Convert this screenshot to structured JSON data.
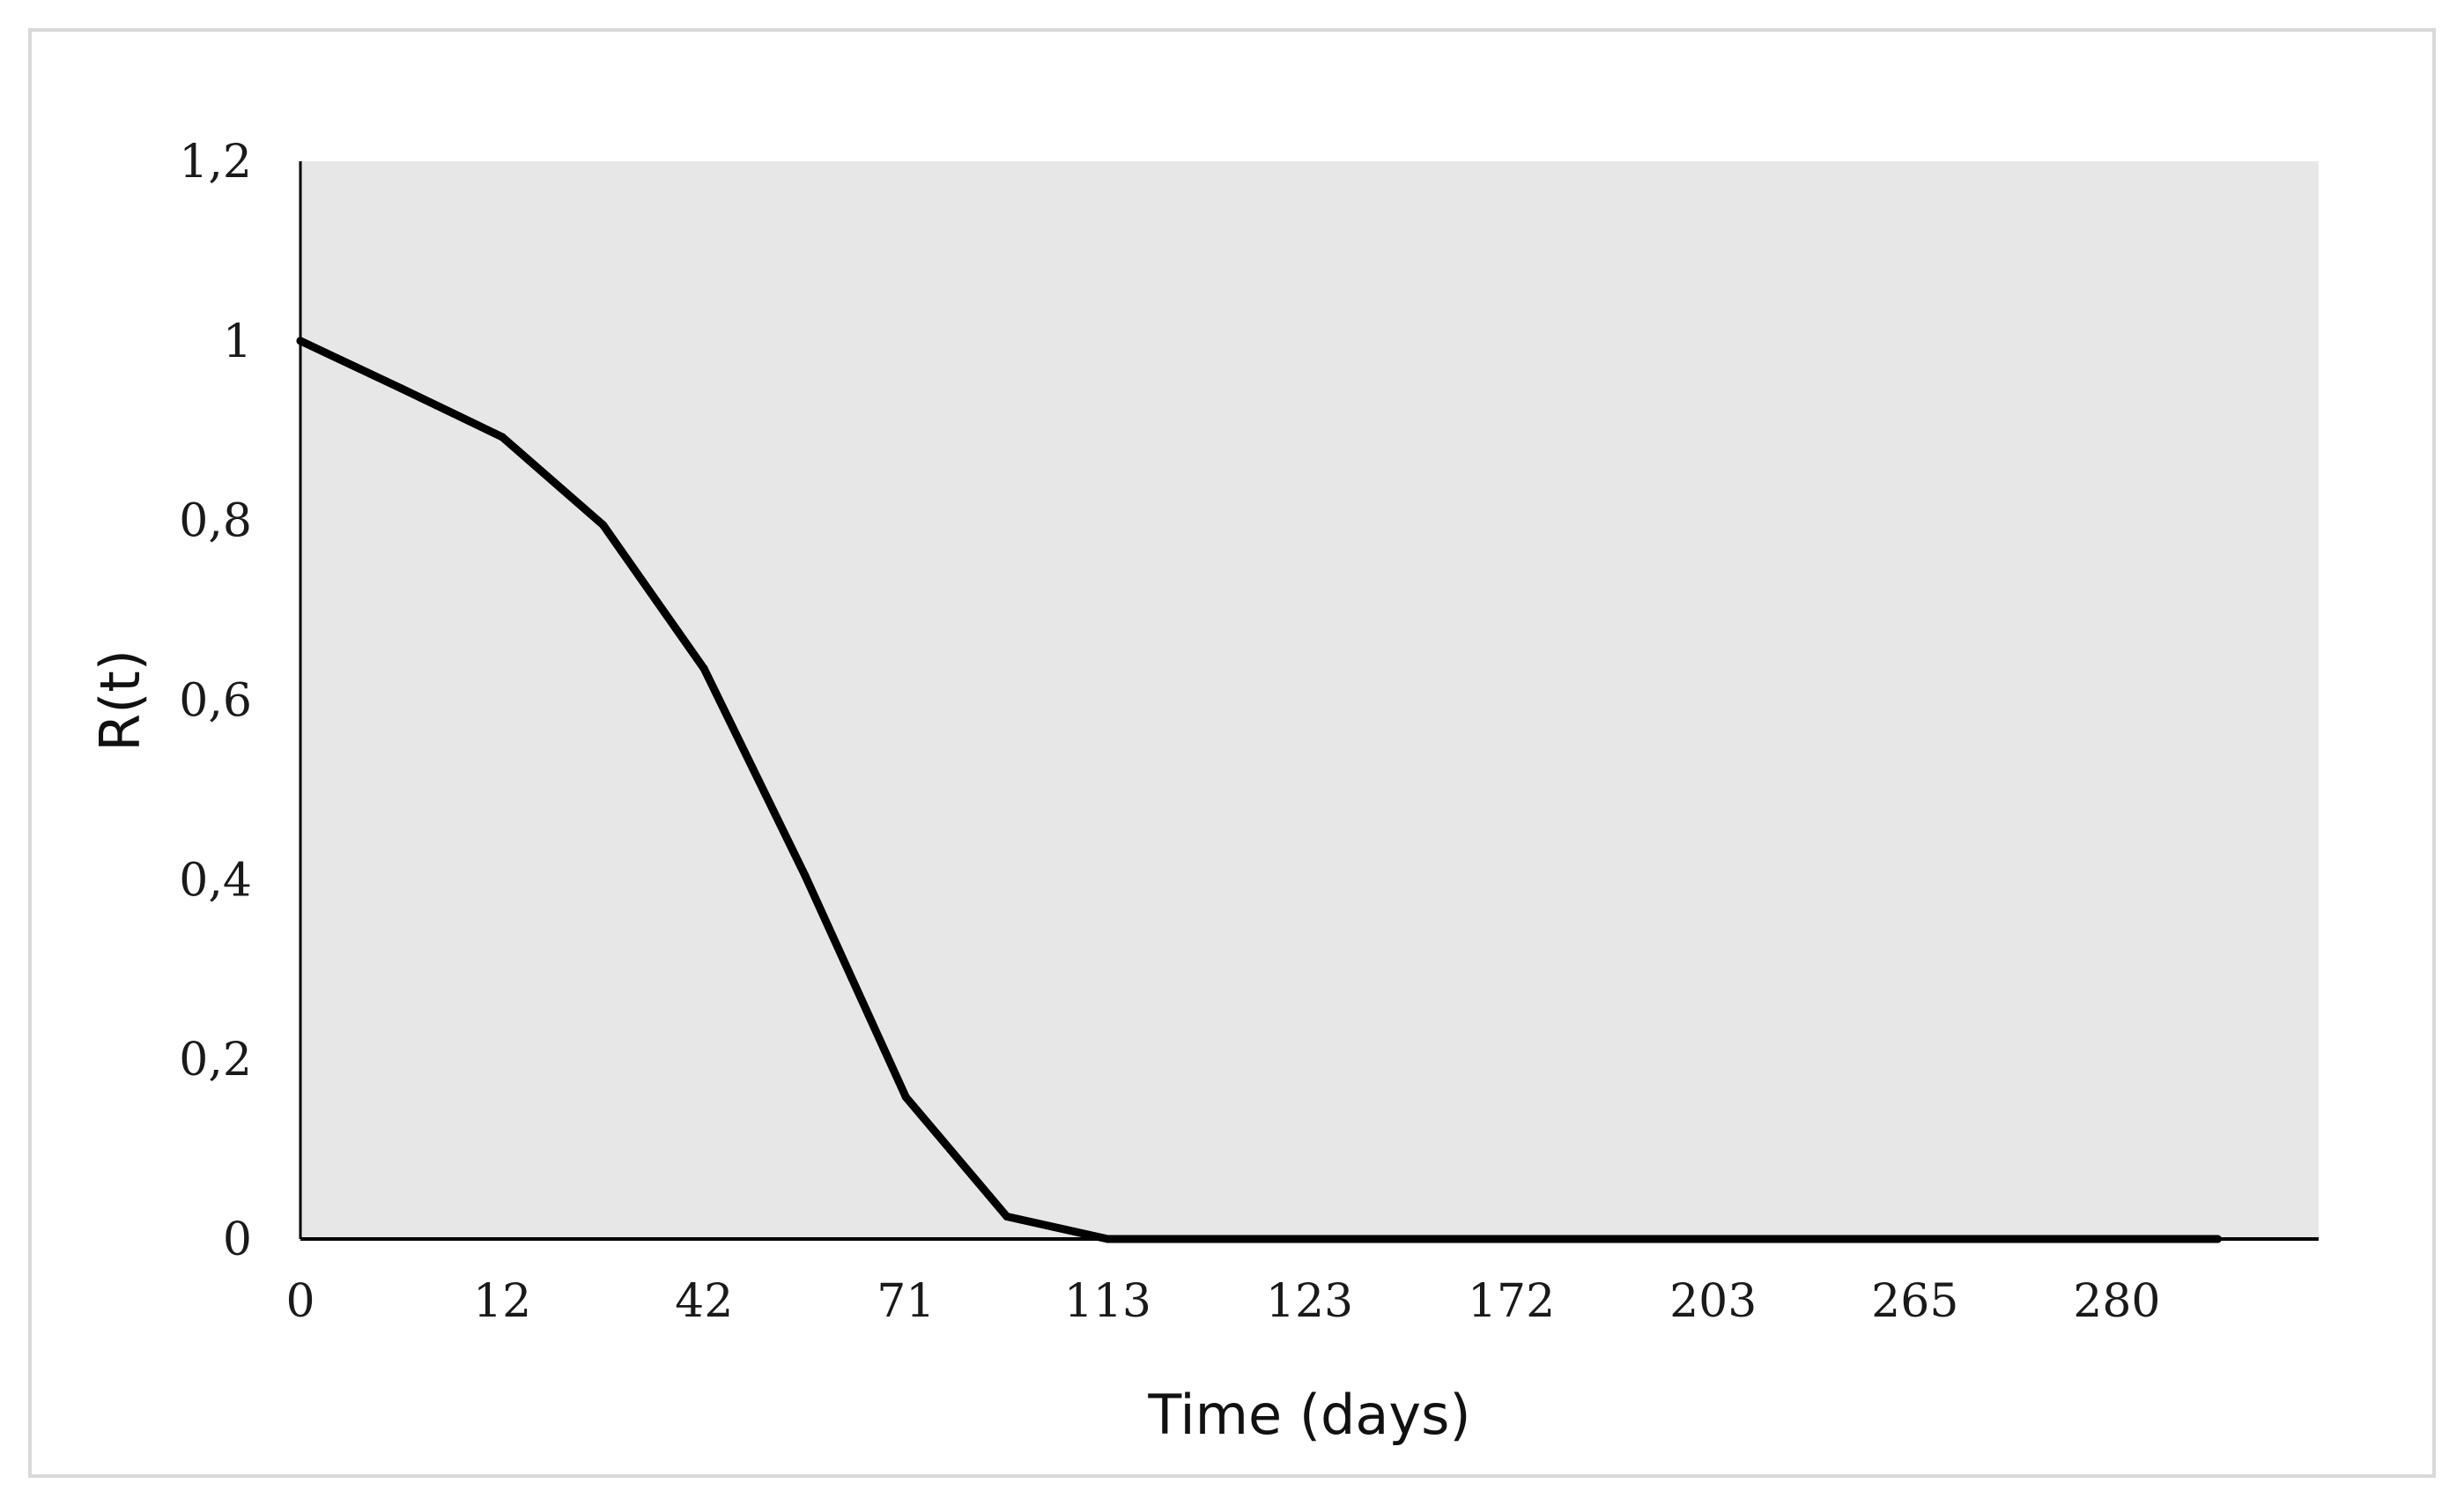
{
  "chart_data": {
    "type": "line",
    "title": "",
    "xlabel": "Time (days)",
    "ylabel": "R(t)",
    "categories": [
      "0",
      "12",
      "42",
      "71",
      "113",
      "123",
      "172",
      "203",
      "265",
      "280"
    ],
    "x": [
      0,
      0.5,
      1,
      1.5,
      2,
      2.5,
      3,
      3.5,
      4,
      4.5,
      5,
      5.5,
      6,
      6.5,
      7,
      7.5,
      8,
      8.5,
      9,
      9.5
    ],
    "series": [
      {
        "values": [
          1.0,
          0.947,
          0.893,
          0.795,
          0.635,
          0.405,
          0.158,
          0.025,
          0.0,
          0.0,
          0.0,
          0.0,
          0.0,
          0.0,
          0.0,
          0.0,
          0.0,
          0.0,
          0.0,
          0.0
        ]
      }
    ],
    "ylim": [
      0,
      1.2
    ],
    "y_ticks": [
      "0",
      "0,2",
      "0,4",
      "0,6",
      "0,8",
      "1",
      "1,2"
    ],
    "y_tick_values": [
      0,
      0.2,
      0.4,
      0.6,
      0.8,
      1.0,
      1.2
    ],
    "grid": false,
    "legend": "none",
    "colors": {
      "plot_background": "#e7e7e7",
      "line": "#000000",
      "axis": "#000000",
      "frame_border": "#d9d9d9"
    }
  }
}
